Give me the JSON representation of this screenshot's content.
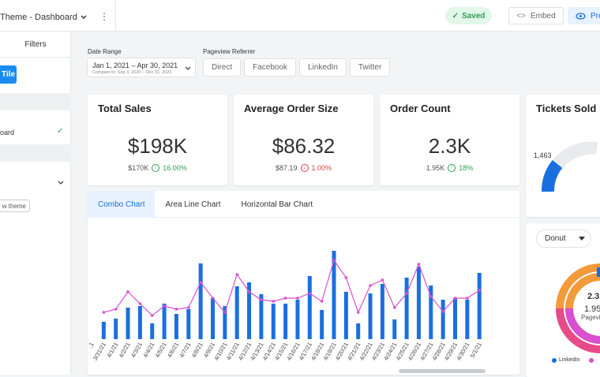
{
  "header": {
    "title": "Theme - Dashboard",
    "saved": "Saved",
    "embed": "Embed",
    "preview": "Pre"
  },
  "sidebar": {
    "tab": "Filters",
    "add_button": "Tile",
    "item": "oard",
    "theme_button": "w theme"
  },
  "filters": {
    "date_label": "Date Range",
    "date_value": "Jan 1, 2021 – Apr 30, 2021",
    "compare": "Compare to: Sep 3, 2020 – Dec 31, 2020",
    "referrer_label": "Pageview Referrer",
    "referrers": [
      "Direct",
      "Facebook",
      "LinkedIn",
      "Twitter"
    ]
  },
  "kpis": [
    {
      "title": "Total Sales",
      "value": "$198K",
      "previous": "$170K",
      "change": "16.00%"
    },
    {
      "title": "Average Order Size",
      "value": "$86.32",
      "previous": "$87.19",
      "change": "1.00%"
    },
    {
      "title": "Order Count",
      "value": "2.3K",
      "previous": "1.95K",
      "change": "18%"
    }
  ],
  "tickets": {
    "title": "Tickets Sold",
    "value": "1,463"
  },
  "tabs": [
    "Combo Chart",
    "Area Line Chart",
    "Horizontal Bar Chart"
  ],
  "donut": {
    "select": "Donut",
    "value": "2.3",
    "sub": "1.95",
    "label": "Pagevi",
    "legend": "LinkedIn"
  },
  "chart_data": {
    "type": "combo",
    "categories": [
      ",1",
      "3/31/21",
      "4/1/21",
      "4/2/21",
      "4/3/21",
      "4/4/21",
      "4/5/21",
      "4/6/21",
      "4/7/21",
      "4/8/21",
      "4/9/21",
      "4/10/21",
      "4/11/21",
      "4/12/21",
      "4/13/21",
      "4/14/21",
      "4/15/21",
      "4/16/21",
      "4/17/21",
      "4/18/21",
      "4/19/21",
      "4/20/21",
      "4/21/21",
      "4/22/21",
      "4/23/21",
      "4/24/21",
      "4/25/21",
      "4/26/21",
      "4/27/21",
      "4/28/21",
      "4/29/21",
      "4/30/21",
      "5/1/21"
    ],
    "ylim": [
      0,
      130
    ],
    "series": [
      {
        "type": "bar",
        "color": "#1a6fe0",
        "values": [
          null,
          22,
          26,
          40,
          42,
          20,
          45,
          32,
          38,
          96,
          52,
          42,
          67,
          72,
          57,
          45,
          45,
          50,
          80,
          37,
          112,
          60,
          20,
          58,
          70,
          25,
          78,
          92,
          68,
          50,
          52,
          50,
          84
        ]
      },
      {
        "type": "line",
        "color": "#d84fd0",
        "values": [
          null,
          34,
          38,
          60,
          45,
          30,
          42,
          38,
          40,
          72,
          52,
          34,
          82,
          60,
          50,
          48,
          52,
          52,
          58,
          48,
          100,
          78,
          34,
          68,
          75,
          40,
          58,
          95,
          54,
          35,
          52,
          52,
          62
        ]
      }
    ]
  }
}
